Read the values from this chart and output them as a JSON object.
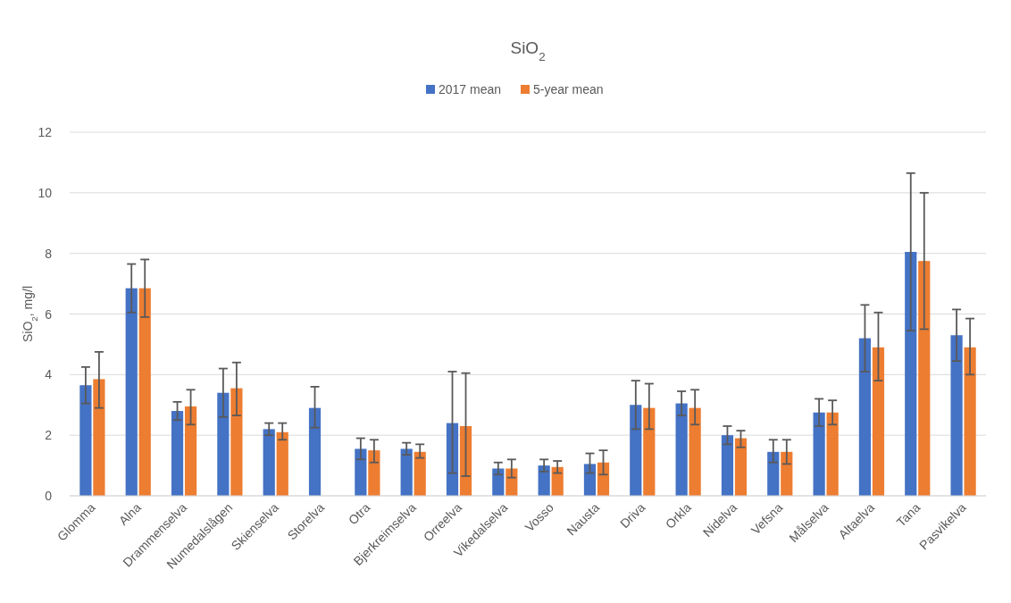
{
  "chart_data": {
    "type": "bar",
    "title": "SiO$_{2}$",
    "ylabel": "SiO$_{2}$, mg/l",
    "categories": [
      "Glomma",
      "Alna",
      "Drammenselva",
      "Numedalslågen",
      "Skienselva",
      "Storelva",
      "Otra",
      "Bjerkreimselva",
      "Orreelva",
      "Vikedalselva",
      "Vosso",
      "Nausta",
      "Driva",
      "Orkla",
      "Nidelva",
      "Vefsna",
      "Målselva",
      "Altaelva",
      "Tana",
      "Pasvikelva"
    ],
    "series": [
      {
        "name": "2017 mean",
        "color": "#4472c4",
        "values": [
          3.65,
          6.85,
          2.8,
          3.4,
          2.2,
          2.9,
          1.55,
          1.55,
          2.4,
          0.9,
          1.0,
          1.05,
          3.0,
          3.05,
          2.0,
          1.45,
          2.75,
          5.2,
          8.05,
          5.3
        ],
        "errors": [
          [
            3.05,
            4.25
          ],
          [
            6.05,
            7.65
          ],
          [
            2.5,
            3.1
          ],
          [
            2.6,
            4.2
          ],
          [
            2.0,
            2.4
          ],
          [
            2.25,
            3.6
          ],
          [
            1.2,
            1.9
          ],
          [
            1.35,
            1.75
          ],
          [
            0.75,
            4.1
          ],
          [
            0.7,
            1.1
          ],
          [
            0.8,
            1.2
          ],
          [
            0.75,
            1.4
          ],
          [
            2.2,
            3.8
          ],
          [
            2.65,
            3.45
          ],
          [
            1.7,
            2.3
          ],
          [
            1.1,
            1.85
          ],
          [
            2.3,
            3.2
          ],
          [
            4.1,
            6.3
          ],
          [
            5.45,
            10.65
          ],
          [
            4.45,
            6.15
          ]
        ]
      },
      {
        "name": "5-year mean",
        "color": "#ed7d31",
        "values": [
          3.85,
          6.85,
          2.95,
          3.55,
          2.1,
          null,
          1.5,
          1.45,
          2.3,
          0.9,
          0.95,
          1.1,
          2.9,
          2.9,
          1.9,
          1.45,
          2.75,
          4.9,
          7.75,
          4.9
        ],
        "errors": [
          [
            2.9,
            4.75
          ],
          [
            5.9,
            7.8
          ],
          [
            2.35,
            3.5
          ],
          [
            2.65,
            4.4
          ],
          [
            1.85,
            2.4
          ],
          null,
          [
            1.1,
            1.85
          ],
          [
            1.25,
            1.7
          ],
          [
            0.65,
            4.05
          ],
          [
            0.6,
            1.2
          ],
          [
            0.75,
            1.15
          ],
          [
            0.7,
            1.5
          ],
          [
            2.2,
            3.7
          ],
          [
            2.35,
            3.5
          ],
          [
            1.6,
            2.15
          ],
          [
            1.05,
            1.85
          ],
          [
            2.35,
            3.15
          ],
          [
            3.8,
            6.05
          ],
          [
            5.5,
            10.0
          ],
          [
            4.0,
            5.85
          ]
        ]
      }
    ],
    "ylim": [
      0,
      12
    ],
    "yticks": [
      0,
      2,
      4,
      6,
      8,
      10,
      12
    ],
    "grid": "y",
    "legend": "top"
  }
}
